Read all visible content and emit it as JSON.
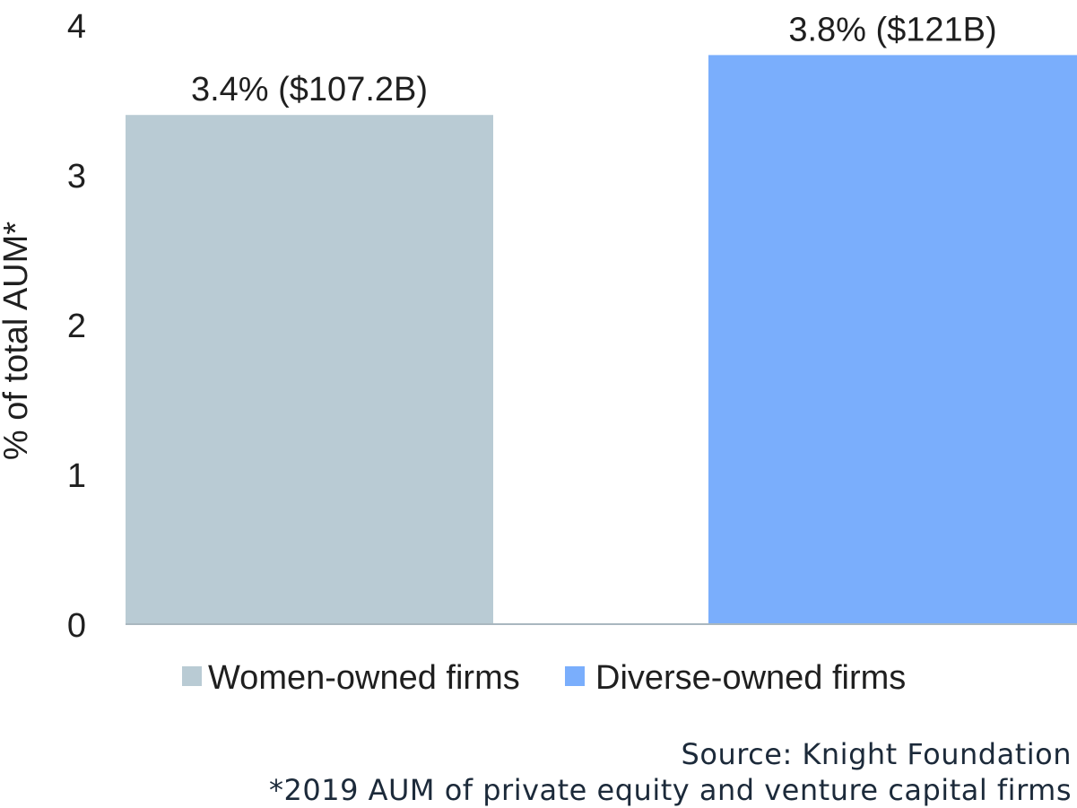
{
  "chart_data": {
    "type": "bar",
    "categories": [
      "Women-owned firms",
      "Diverse-owned firms"
    ],
    "values": [
      3.4,
      3.8
    ],
    "data_labels": [
      "3.4% ($107.2B)",
      "3.8% ($121B)"
    ],
    "colors": [
      "#b9cbd4",
      "#7aaefc"
    ],
    "title": "",
    "xlabel": "",
    "ylabel": "% of total AUM*",
    "ylim": [
      0,
      4
    ],
    "yticks": [
      "0",
      "1",
      "2",
      "3",
      "4"
    ],
    "grid": false,
    "legend_placement": "bottom",
    "legend": [
      {
        "name": "Women-owned firms",
        "color": "#b9cbd4"
      },
      {
        "name": "Diverse-owned firms",
        "color": "#7aaefc"
      }
    ]
  },
  "footer": {
    "source_prefix": "Source:",
    "source_text": " Knight Foundation",
    "note": "*2019 AUM of private equity and venture capital firms"
  }
}
